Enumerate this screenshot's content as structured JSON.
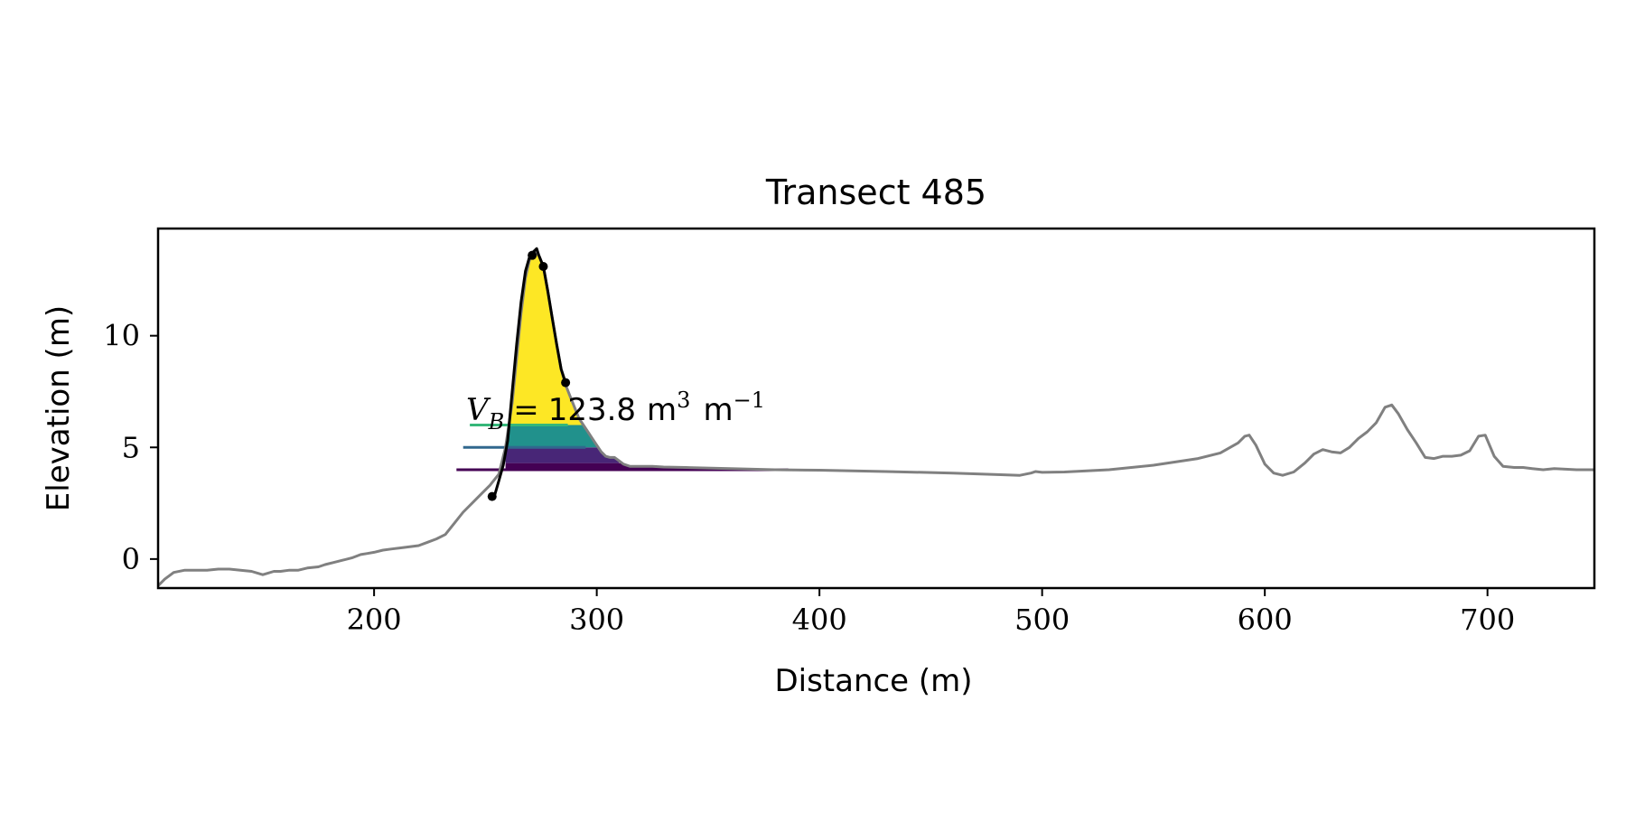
{
  "chart_data": {
    "type": "line",
    "title": "Transect 485",
    "xlabel": "Distance (m)",
    "ylabel": "Elevation (m)",
    "xlim": [
      103,
      748
    ],
    "ylim": [
      -1.3,
      14.8
    ],
    "xticks": [
      200,
      300,
      400,
      500,
      600,
      700
    ],
    "yticks": [
      0,
      5,
      10
    ],
    "grid": false,
    "annotation": {
      "symbol": "V",
      "subscript": "B",
      "operator": "=",
      "value": "123.8",
      "unit": "m",
      "unit_exp": "3",
      "per_unit": "m",
      "per_unit_exp": "−1"
    },
    "colors": {
      "profile": "#808080",
      "dune": "#000000",
      "levels": [
        "#440154",
        "#31688e",
        "#35b779",
        "#fde725"
      ],
      "fills": [
        "#440154",
        "#482677",
        "#21918c",
        "#fde725"
      ]
    },
    "profile": {
      "x": [
        103,
        106,
        110,
        115,
        120,
        125,
        130,
        135,
        140,
        145,
        150,
        155,
        158,
        162,
        166,
        170,
        175,
        178,
        182,
        186,
        190,
        194,
        197,
        200,
        204,
        208,
        212,
        216,
        220,
        224,
        228,
        232,
        236,
        240,
        244,
        248,
        252,
        256,
        259,
        262,
        264,
        266,
        268,
        270,
        272,
        274,
        276,
        278,
        280,
        282,
        284,
        286,
        288,
        290,
        292,
        294,
        296,
        298,
        300,
        302,
        304,
        306,
        308,
        310,
        312,
        315,
        320,
        325,
        330,
        340,
        360,
        380,
        400,
        430,
        460,
        480,
        490,
        495,
        497,
        500,
        510,
        530,
        550,
        570,
        580,
        588,
        591,
        593,
        596,
        600,
        604,
        608,
        613,
        618,
        622,
        626,
        630,
        634,
        638,
        642,
        646,
        650,
        654,
        657,
        660,
        664,
        668,
        672,
        676,
        680,
        684,
        688,
        692,
        696,
        699,
        703,
        707,
        712,
        716,
        720,
        725,
        730,
        740,
        748
      ],
      "y": [
        -1.2,
        -0.9,
        -0.6,
        -0.5,
        -0.5,
        -0.5,
        -0.45,
        -0.45,
        -0.5,
        -0.55,
        -0.7,
        -0.55,
        -0.55,
        -0.5,
        -0.5,
        -0.4,
        -0.35,
        -0.25,
        -0.15,
        -0.05,
        0.05,
        0.2,
        0.25,
        0.3,
        0.4,
        0.45,
        0.5,
        0.55,
        0.6,
        0.75,
        0.9,
        1.1,
        1.6,
        2.1,
        2.5,
        2.9,
        3.3,
        3.8,
        5.0,
        7.0,
        9.0,
        11.0,
        12.6,
        13.5,
        13.8,
        13.6,
        13.1,
        12.0,
        10.8,
        9.6,
        8.5,
        7.8,
        7.3,
        6.8,
        6.3,
        6.0,
        5.7,
        5.4,
        5.1,
        4.8,
        4.6,
        4.55,
        4.55,
        4.4,
        4.25,
        4.15,
        4.15,
        4.15,
        4.12,
        4.1,
        4.05,
        4.0,
        3.98,
        3.92,
        3.85,
        3.78,
        3.75,
        3.85,
        3.92,
        3.88,
        3.9,
        4.0,
        4.2,
        4.5,
        4.75,
        5.2,
        5.5,
        5.55,
        5.1,
        4.25,
        3.85,
        3.75,
        3.9,
        4.3,
        4.7,
        4.9,
        4.8,
        4.75,
        5.0,
        5.4,
        5.7,
        6.1,
        6.8,
        6.9,
        6.5,
        5.8,
        5.2,
        4.55,
        4.5,
        4.6,
        4.6,
        4.65,
        4.85,
        5.5,
        5.55,
        4.6,
        4.15,
        4.1,
        4.1,
        4.05,
        4.0,
        4.05,
        4.0,
        4.0
      ]
    },
    "dune_outline": {
      "x": [
        254,
        256,
        258,
        260,
        262,
        264,
        266,
        268,
        270,
        272,
        273,
        274,
        276,
        278,
        280,
        282,
        284,
        286
      ],
      "y": [
        2.8,
        3.5,
        4.2,
        5.3,
        7.5,
        9.6,
        11.5,
        12.9,
        13.6,
        13.8,
        13.9,
        13.6,
        13.1,
        12.0,
        10.8,
        9.6,
        8.5,
        7.9
      ]
    },
    "markers": {
      "x": [
        253,
        271,
        276,
        286
      ],
      "y": [
        2.8,
        13.6,
        13.1,
        7.9
      ]
    },
    "levels": [
      {
        "y": 4.0,
        "x_start": 237,
        "x_end": 386
      },
      {
        "y": 5.0,
        "x_start": 240,
        "x_end": 295
      },
      {
        "y": 6.0,
        "x_start": 243,
        "x_end": 287
      }
    ],
    "fills": [
      {
        "y_low": 4.0,
        "y_high": 4.3,
        "x_start": 259,
        "x_end": 385
      },
      {
        "y_low": 4.3,
        "y_high": 5.0,
        "x_start": 259,
        "x_end": 310
      },
      {
        "y_low": 5.0,
        "y_high": 6.0,
        "x_start": 259,
        "x_end": 300
      },
      {
        "y_low": 6.0,
        "y_high": 14.0,
        "x_start": 259,
        "x_end": 300
      }
    ]
  }
}
